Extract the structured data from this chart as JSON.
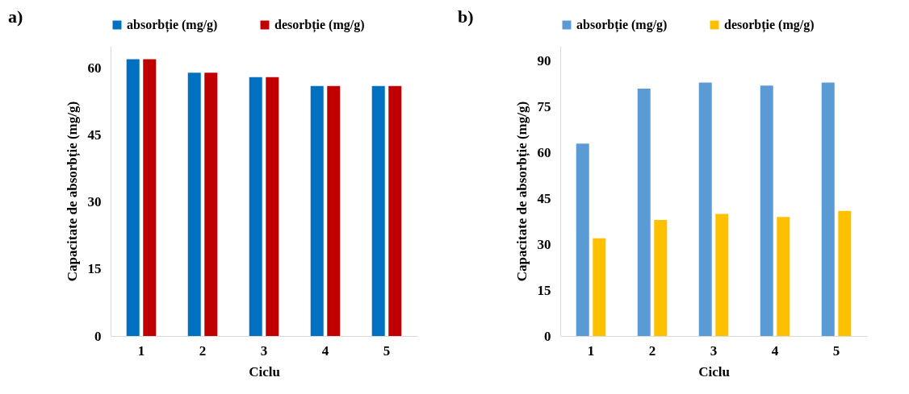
{
  "chart_data": [
    {
      "type": "bar",
      "title": "a)",
      "xlabel": "Ciclu",
      "ylabel": "Capacitate de absorbție (mg/g)",
      "categories": [
        "1",
        "2",
        "3",
        "4",
        "5"
      ],
      "series": [
        {
          "name": "absorbție (mg/g)",
          "color": "#0070c0",
          "values": [
            62,
            59,
            58,
            56,
            56
          ]
        },
        {
          "name": "desorbție (mg/g)",
          "color": "#c00000",
          "values": [
            62,
            59,
            58,
            56,
            56
          ]
        }
      ],
      "ylim": [
        0,
        65
      ],
      "yticks": [
        0,
        15,
        30,
        45,
        60
      ],
      "legend": "top"
    },
    {
      "type": "bar",
      "title": "b)",
      "xlabel": "Ciclu",
      "ylabel": "Capacitate de absorbție (mg/g)",
      "categories": [
        "1",
        "2",
        "3",
        "4",
        "5"
      ],
      "series": [
        {
          "name": "absorbție (mg/g)",
          "color": "#5b9bd5",
          "values": [
            63,
            81,
            83,
            82,
            83
          ]
        },
        {
          "name": "desorbție (mg/g)",
          "color": "#ffc000",
          "values": [
            32,
            38,
            40,
            39,
            41
          ]
        }
      ],
      "ylim": [
        0,
        95
      ],
      "yticks": [
        0,
        15,
        30,
        45,
        60,
        75,
        90
      ],
      "legend": "top"
    }
  ]
}
